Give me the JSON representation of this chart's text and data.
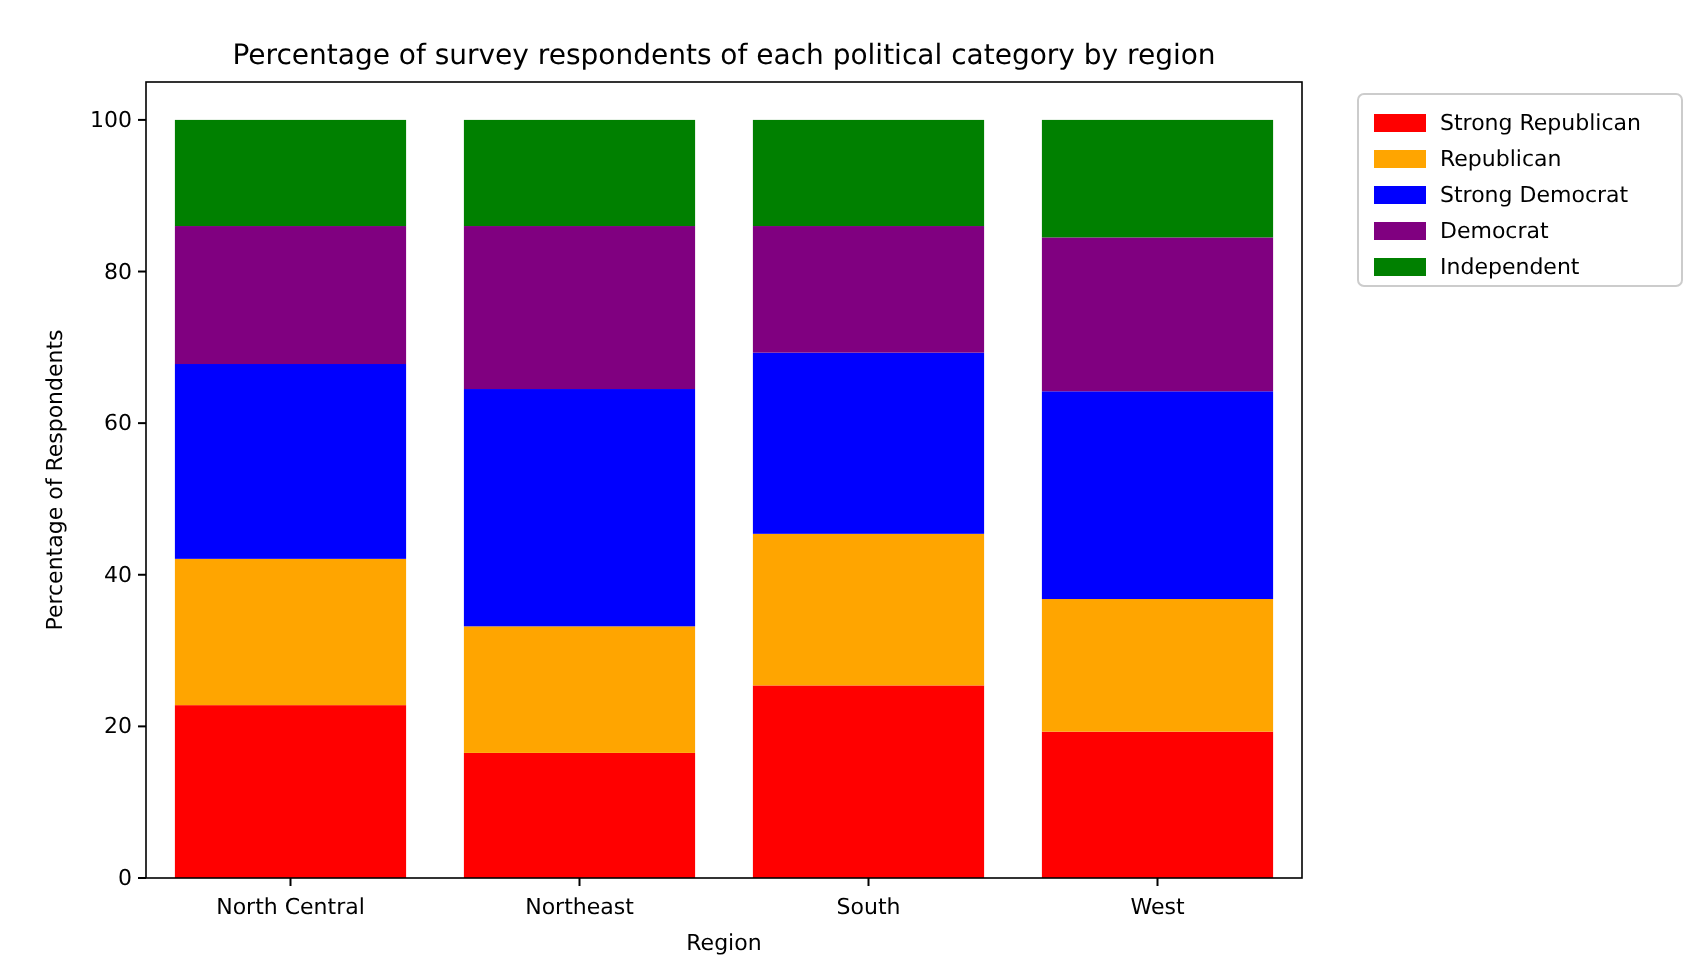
{
  "chart_data": {
    "type": "bar",
    "title": "Percentage of survey respondents of each political category by region",
    "xlabel": "Region",
    "ylabel": "Percentage of Respondents",
    "categories": [
      "North Central",
      "Northeast",
      "South",
      "West"
    ],
    "stacked": true,
    "series": [
      {
        "name": "Strong Republican",
        "color": "#ff0000",
        "values": [
          22.8,
          16.5,
          25.4,
          19.3
        ]
      },
      {
        "name": "Republican",
        "color": "#ffa500",
        "values": [
          19.3,
          16.7,
          20.0,
          17.5
        ]
      },
      {
        "name": "Strong Democrat",
        "color": "#0000ff",
        "values": [
          25.7,
          31.3,
          23.9,
          27.4
        ]
      },
      {
        "name": "Democrat",
        "color": "#800080",
        "values": [
          18.2,
          21.5,
          16.7,
          20.3
        ]
      },
      {
        "name": "Independent",
        "color": "#008000",
        "values": [
          14.0,
          14.0,
          14.0,
          15.5
        ]
      }
    ],
    "ylim": [
      0,
      105
    ],
    "yticks": [
      0,
      20,
      40,
      60,
      80,
      100
    ],
    "legend": "top right outside",
    "grid": false
  }
}
